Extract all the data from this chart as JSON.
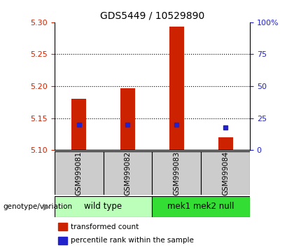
{
  "title": "GDS5449 / 10529890",
  "samples": [
    "GSM999081",
    "GSM999082",
    "GSM999083",
    "GSM999084"
  ],
  "bar_values": [
    5.18,
    5.197,
    5.293,
    5.12
  ],
  "bar_base": 5.1,
  "percentile_values": [
    5.14,
    5.14,
    5.14,
    5.135
  ],
  "ylim_left": [
    5.1,
    5.3
  ],
  "ylim_right": [
    0,
    100
  ],
  "yticks_left": [
    5.1,
    5.15,
    5.2,
    5.25,
    5.3
  ],
  "yticks_right": [
    0,
    25,
    50,
    75,
    100
  ],
  "ytick_labels_right": [
    "0",
    "25",
    "50",
    "75",
    "100%"
  ],
  "bar_color": "#cc2200",
  "percentile_color": "#2222cc",
  "groups": [
    {
      "label": "wild type",
      "samples": [
        0,
        1
      ],
      "color": "#bbffbb"
    },
    {
      "label": "mek1 mek2 null",
      "samples": [
        2,
        3
      ],
      "color": "#33dd33"
    }
  ],
  "group_row_label": "genotype/variation",
  "legend_items": [
    {
      "color": "#cc2200",
      "label": "transformed count"
    },
    {
      "color": "#2222cc",
      "label": "percentile rank within the sample"
    }
  ],
  "sample_box_color": "#cccccc",
  "bar_width": 0.3,
  "grid_yticks": [
    5.15,
    5.2,
    5.25
  ]
}
